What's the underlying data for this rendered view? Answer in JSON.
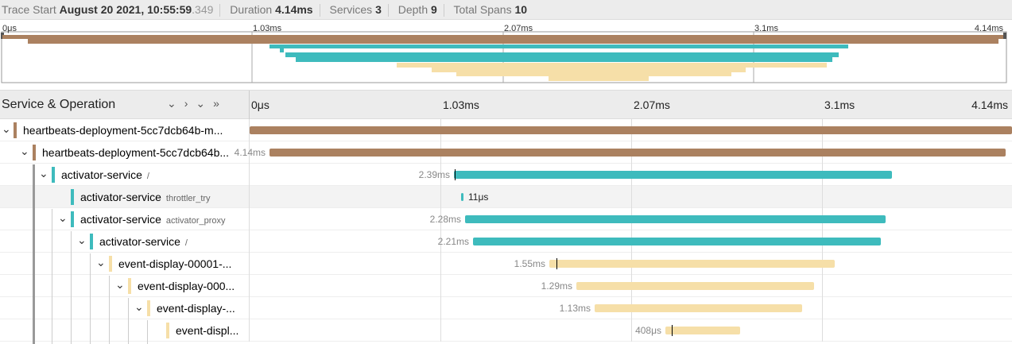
{
  "header": {
    "trace_start_label": "Trace Start",
    "trace_start": "August 20 2021, 10:55:59",
    "trace_start_fraction": ".349",
    "duration_label": "Duration",
    "duration": "4.14ms",
    "services_label": "Services",
    "services": 3,
    "depth_label": "Depth",
    "depth": 9,
    "total_spans_label": "Total Spans",
    "total_spans": 10
  },
  "minimap": {
    "ticks": [
      "0μs",
      "1.03ms",
      "2.07ms",
      "3.1ms",
      "4.14ms"
    ]
  },
  "timeline": {
    "column_title": "Service & Operation",
    "ticks": [
      "0μs",
      "1.03ms",
      "2.07ms",
      "3.1ms",
      "4.14ms"
    ]
  },
  "spans": [
    {
      "service": "heartbeats-deployment-5cc7dcb64b-m..."
    },
    {
      "service": "heartbeats-deployment-5cc7dcb64b...",
      "duration": "4.14ms"
    },
    {
      "service": "activator-service",
      "operation": "/",
      "duration": "2.39ms"
    },
    {
      "service": "activator-service",
      "operation": "throttler_try",
      "duration": "11μs"
    },
    {
      "service": "activator-service",
      "operation": "activator_proxy",
      "duration": "2.28ms"
    },
    {
      "service": "activator-service",
      "operation": "/",
      "duration": "2.21ms"
    },
    {
      "service": "event-display-00001-...",
      "duration": "1.55ms"
    },
    {
      "service": "event-display-000...",
      "duration": "1.29ms"
    },
    {
      "service": "event-display-...",
      "duration": "1.13ms"
    },
    {
      "service": "event-displ...",
      "duration": "408μs"
    }
  ]
}
